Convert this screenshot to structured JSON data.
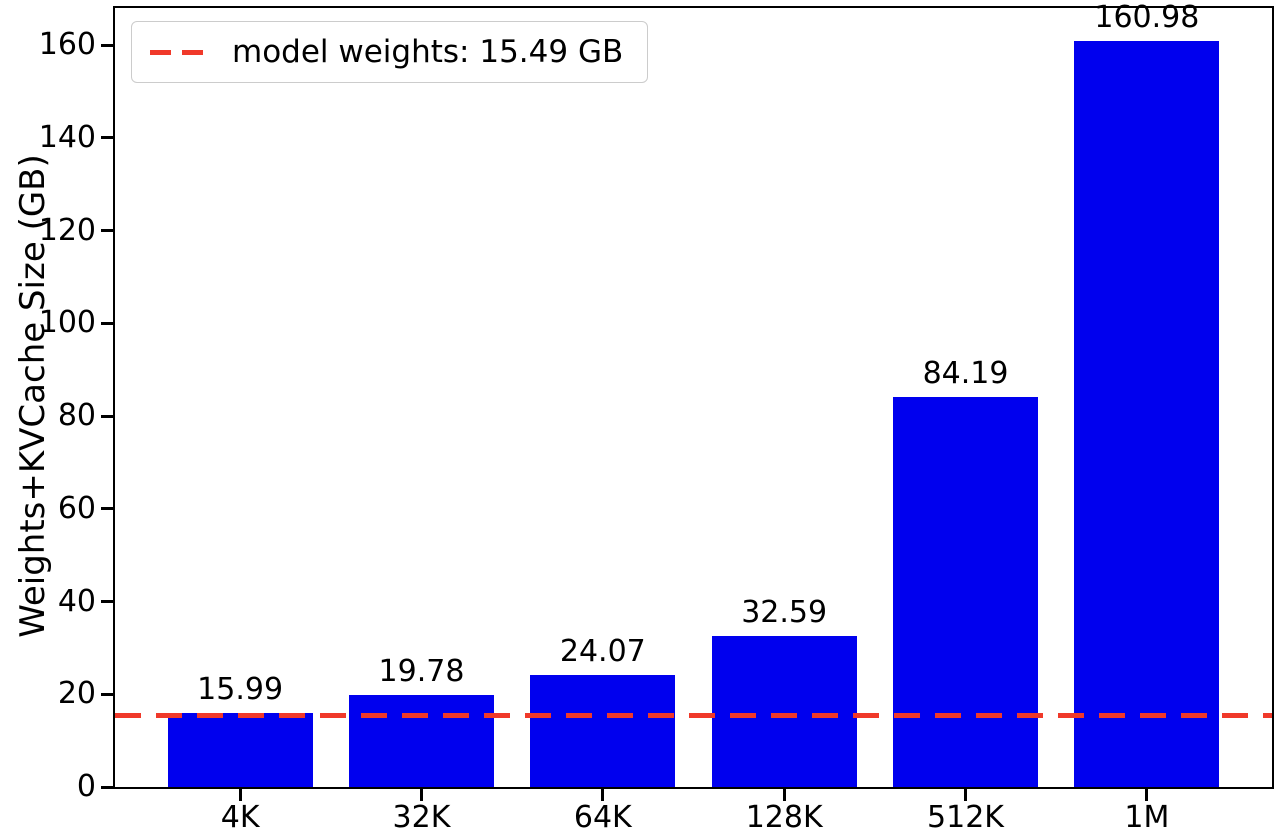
{
  "chart_data": {
    "type": "bar",
    "title": "",
    "categories": [
      "4K",
      "32K",
      "64K",
      "128K",
      "512K",
      "1M"
    ],
    "values": [
      15.99,
      19.78,
      24.07,
      32.59,
      84.19,
      160.98
    ],
    "bar_labels": [
      "15.99",
      "19.78",
      "24.07",
      "32.59",
      "84.19",
      "160.98"
    ],
    "xlabel": "",
    "ylabel": "Weights+KVCache Size (GB)",
    "ylim": [
      0,
      168
    ],
    "yticks": [
      0,
      20,
      40,
      60,
      80,
      100,
      120,
      140,
      160
    ],
    "grid": false,
    "bar_color": "#0000ee",
    "legend_position": "upper left",
    "reference_line": {
      "value": 15.49,
      "label": "model weights: 15.49 GB",
      "color": "#f0392a",
      "style": "dashed"
    }
  }
}
